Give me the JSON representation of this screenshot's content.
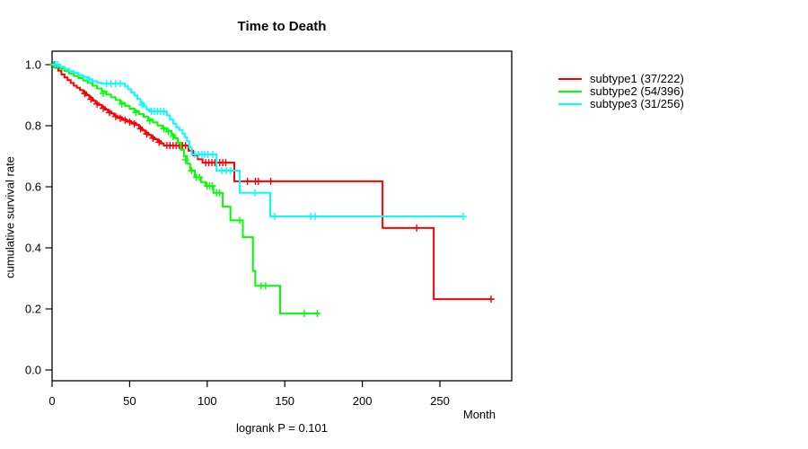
{
  "title": "Time to Death",
  "annotation": "logrank P = 0.101",
  "axes": {
    "x_label": "Month",
    "y_label": "cumulative survival rate",
    "x_tick_labels": [
      "0",
      "50",
      "100",
      "150",
      "200",
      "250"
    ],
    "y_tick_labels": [
      "0.0",
      "0.2",
      "0.4",
      "0.6",
      "0.8",
      "1.0"
    ]
  },
  "legend": {
    "items": [
      {
        "id": "subtype1",
        "label": "subtype1 (37/222)",
        "color": "#ff0000"
      },
      {
        "id": "subtype2",
        "label": "subtype2 (54/396)",
        "color": "#00ff00"
      },
      {
        "id": "subtype3",
        "label": "subtype3 (31/256)",
        "color": "#00ffff"
      }
    ]
  },
  "chart_data": {
    "type": "line",
    "variant": "kaplan_meier_step",
    "title": "Time to Death",
    "xlabel": "Month",
    "ylabel": "cumulative survival rate",
    "xlim": [
      0,
      296
    ],
    "ylim": [
      0,
      1
    ],
    "x_ticks": [
      0,
      50,
      100,
      150,
      200,
      250
    ],
    "y_ticks": [
      0,
      0.2,
      0.4,
      0.6,
      0.8,
      1.0
    ],
    "grid": false,
    "legend_position": "right-outside",
    "annotation": "logrank P = 0.101",
    "frame_color": "#000000",
    "series": [
      {
        "name": "subtype1 (37/222)",
        "events": 37,
        "n": 222,
        "color": "#ff0000",
        "end_time": 284,
        "steps": [
          [
            0,
            1.0
          ],
          [
            2,
            0.99
          ],
          [
            4,
            0.98
          ],
          [
            6,
            0.968
          ],
          [
            8,
            0.958
          ],
          [
            10,
            0.949
          ],
          [
            12,
            0.94
          ],
          [
            14,
            0.931
          ],
          [
            16,
            0.924
          ],
          [
            18,
            0.917
          ],
          [
            20,
            0.91
          ],
          [
            22,
            0.9
          ],
          [
            24,
            0.892
          ],
          [
            26,
            0.882
          ],
          [
            28,
            0.874
          ],
          [
            30,
            0.868
          ],
          [
            32,
            0.861
          ],
          [
            34,
            0.853
          ],
          [
            36,
            0.847
          ],
          [
            38,
            0.84
          ],
          [
            40,
            0.833
          ],
          [
            42,
            0.828
          ],
          [
            45,
            0.821
          ],
          [
            48,
            0.815
          ],
          [
            51,
            0.81
          ],
          [
            54,
            0.803
          ],
          [
            56,
            0.794
          ],
          [
            58,
            0.785
          ],
          [
            60,
            0.777
          ],
          [
            62,
            0.77
          ],
          [
            64,
            0.762
          ],
          [
            66,
            0.756
          ],
          [
            68,
            0.75
          ],
          [
            70,
            0.742
          ],
          [
            72,
            0.735
          ],
          [
            88,
            0.718
          ],
          [
            91,
            0.703
          ],
          [
            94,
            0.69
          ],
          [
            97,
            0.679
          ],
          [
            117.5,
            0.618
          ],
          [
            213,
            0.465
          ],
          [
            246,
            0.232
          ]
        ],
        "censors": [
          [
            1.5,
            1.0
          ],
          [
            21,
            0.905
          ],
          [
            25,
            0.887
          ],
          [
            29,
            0.871
          ],
          [
            33,
            0.857
          ],
          [
            37,
            0.843
          ],
          [
            41,
            0.83
          ],
          [
            44,
            0.824
          ],
          [
            47,
            0.818
          ],
          [
            50,
            0.812
          ],
          [
            53,
            0.806
          ],
          [
            57,
            0.79
          ],
          [
            61,
            0.773
          ],
          [
            65,
            0.759
          ],
          [
            69,
            0.746
          ],
          [
            74,
            0.735
          ],
          [
            76,
            0.735
          ],
          [
            78,
            0.735
          ],
          [
            80,
            0.735
          ],
          [
            82,
            0.735
          ],
          [
            84,
            0.735
          ],
          [
            86,
            0.735
          ],
          [
            99,
            0.679
          ],
          [
            101,
            0.679
          ],
          [
            103,
            0.679
          ],
          [
            105,
            0.679
          ],
          [
            108,
            0.679
          ],
          [
            110,
            0.679
          ],
          [
            112,
            0.679
          ],
          [
            126,
            0.618
          ],
          [
            131,
            0.618
          ],
          [
            133,
            0.618
          ],
          [
            141,
            0.618
          ],
          [
            235,
            0.465
          ],
          [
            283,
            0.232
          ]
        ]
      },
      {
        "name": "subtype2 (54/396)",
        "events": 54,
        "n": 396,
        "color": "#00ff00",
        "end_time": 172,
        "steps": [
          [
            0,
            1.0
          ],
          [
            2,
            0.994
          ],
          [
            5,
            0.987
          ],
          [
            8,
            0.979
          ],
          [
            11,
            0.971
          ],
          [
            14,
            0.963
          ],
          [
            17,
            0.956
          ],
          [
            20,
            0.948
          ],
          [
            23,
            0.94
          ],
          [
            26,
            0.931
          ],
          [
            29,
            0.922
          ],
          [
            32,
            0.912
          ],
          [
            35,
            0.902
          ],
          [
            38,
            0.893
          ],
          [
            41,
            0.884
          ],
          [
            44,
            0.874
          ],
          [
            47,
            0.865
          ],
          [
            50,
            0.856
          ],
          [
            53,
            0.847
          ],
          [
            56,
            0.838
          ],
          [
            59,
            0.829
          ],
          [
            62,
            0.82
          ],
          [
            65,
            0.811
          ],
          [
            68,
            0.801
          ],
          [
            71,
            0.792
          ],
          [
            74,
            0.783
          ],
          [
            77,
            0.771
          ],
          [
            79,
            0.759
          ],
          [
            81,
            0.744
          ],
          [
            83,
            0.721
          ],
          [
            85,
            0.7
          ],
          [
            87,
            0.676
          ],
          [
            89,
            0.653
          ],
          [
            92,
            0.631
          ],
          [
            96,
            0.615
          ],
          [
            99,
            0.603
          ],
          [
            104,
            0.58
          ],
          [
            110,
            0.535
          ],
          [
            115,
            0.49
          ],
          [
            123,
            0.435
          ],
          [
            129.5,
            0.324
          ],
          [
            131,
            0.276
          ],
          [
            147,
            0.185
          ]
        ],
        "censors": [
          [
            1,
            1.0
          ],
          [
            33,
            0.906
          ],
          [
            45,
            0.871
          ],
          [
            54,
            0.843
          ],
          [
            63,
            0.816
          ],
          [
            72,
            0.79
          ],
          [
            75,
            0.78
          ],
          [
            78,
            0.765
          ],
          [
            86,
            0.688
          ],
          [
            90,
            0.653
          ],
          [
            93,
            0.631
          ],
          [
            95,
            0.631
          ],
          [
            100,
            0.603
          ],
          [
            101.7,
            0.603
          ],
          [
            103.3,
            0.603
          ],
          [
            106,
            0.58
          ],
          [
            108,
            0.58
          ],
          [
            121,
            0.49
          ],
          [
            134.8,
            0.276
          ],
          [
            137.7,
            0.276
          ],
          [
            162.6,
            0.185
          ],
          [
            171,
            0.185
          ]
        ]
      },
      {
        "name": "subtype3 (31/256)",
        "events": 31,
        "n": 256,
        "color": "#00ffff",
        "end_time": 265,
        "steps": [
          [
            0,
            1.0
          ],
          [
            5,
            0.993
          ],
          [
            8,
            0.986
          ],
          [
            11,
            0.979
          ],
          [
            14,
            0.973
          ],
          [
            17,
            0.966
          ],
          [
            20,
            0.959
          ],
          [
            23,
            0.952
          ],
          [
            26,
            0.946
          ],
          [
            29,
            0.941
          ],
          [
            32,
            0.938
          ],
          [
            47,
            0.929
          ],
          [
            49,
            0.919
          ],
          [
            51,
            0.909
          ],
          [
            53,
            0.899
          ],
          [
            55,
            0.888
          ],
          [
            57,
            0.875
          ],
          [
            59,
            0.863
          ],
          [
            61,
            0.853
          ],
          [
            63,
            0.847
          ],
          [
            74,
            0.834
          ],
          [
            76,
            0.82
          ],
          [
            78,
            0.807
          ],
          [
            80,
            0.795
          ],
          [
            82,
            0.786
          ],
          [
            84,
            0.774
          ],
          [
            85.5,
            0.763
          ],
          [
            87,
            0.749
          ],
          [
            88.5,
            0.729
          ],
          [
            90,
            0.706
          ],
          [
            106,
            0.653
          ],
          [
            121,
            0.58
          ],
          [
            140.6,
            0.503
          ]
        ],
        "censors": [
          [
            2,
            1.0
          ],
          [
            3.5,
            1.0
          ],
          [
            24,
            0.95
          ],
          [
            35,
            0.938
          ],
          [
            38,
            0.938
          ],
          [
            41,
            0.938
          ],
          [
            44,
            0.938
          ],
          [
            58,
            0.869
          ],
          [
            64,
            0.847
          ],
          [
            66,
            0.847
          ],
          [
            68,
            0.847
          ],
          [
            70,
            0.847
          ],
          [
            72,
            0.847
          ],
          [
            92,
            0.706
          ],
          [
            94.3,
            0.706
          ],
          [
            96.6,
            0.706
          ],
          [
            98.3,
            0.706
          ],
          [
            100.5,
            0.706
          ],
          [
            103.6,
            0.706
          ],
          [
            109.4,
            0.653
          ],
          [
            112.3,
            0.653
          ],
          [
            115.2,
            0.653
          ],
          [
            130.8,
            0.58
          ],
          [
            143.5,
            0.503
          ],
          [
            166.7,
            0.503
          ],
          [
            169.6,
            0.503
          ],
          [
            265,
            0.503
          ]
        ]
      }
    ]
  }
}
